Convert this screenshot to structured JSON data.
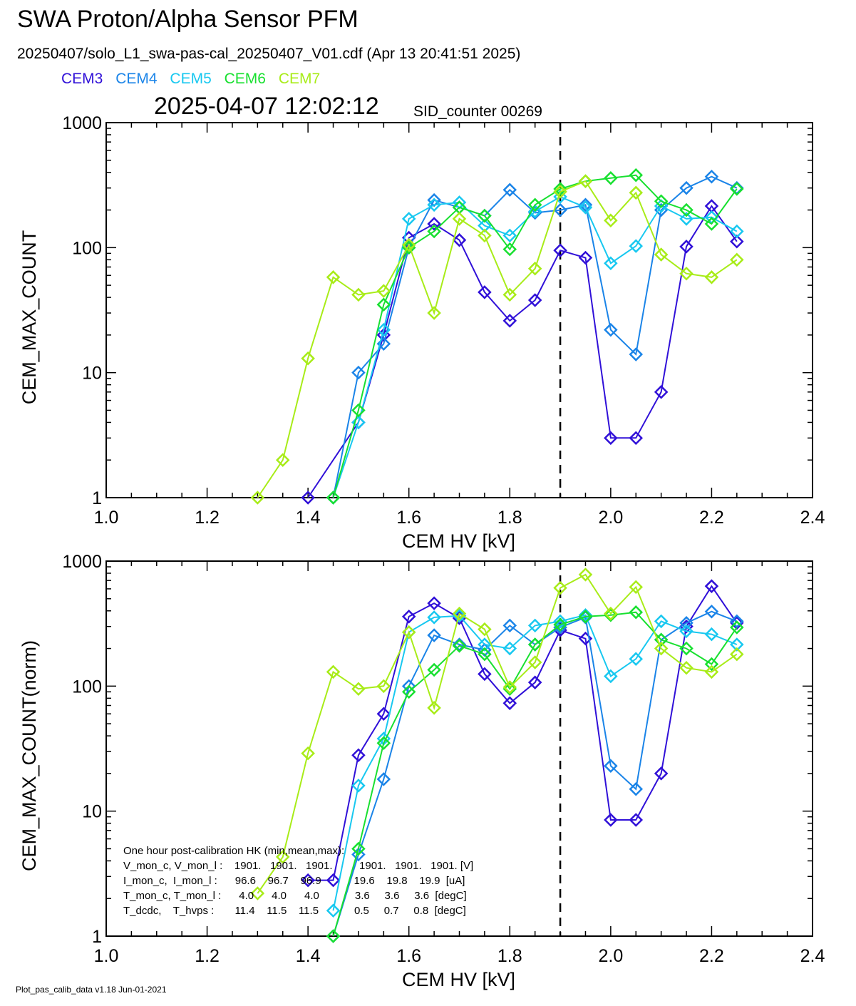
{
  "header": {
    "title": "SWA Proton/Alpha Sensor PFM",
    "file_line": "20250407/solo_L1_swa-pas-cal_20250407_V01.cdf  (Apr 13 20:41:51 2025)",
    "timestamp": "2025-04-07 12:02:12",
    "sid_counter": "SID_counter 00269"
  },
  "legend": [
    {
      "name": "CEM3",
      "color": "#3010d8"
    },
    {
      "name": "CEM4",
      "color": "#1a84e8"
    },
    {
      "name": "CEM5",
      "color": "#18c8f0"
    },
    {
      "name": "CEM6",
      "color": "#18e030"
    },
    {
      "name": "CEM7",
      "color": "#a8ec18"
    }
  ],
  "footer": "Plot_pas_calib_data v1.18 Jun-01-2021",
  "hk_text": {
    "heading": "One hour post-calibration HK (min,mean,max):",
    "lines": [
      "V_mon_c, V_mon_l :    1901.   1901.   1901.         1901.   1901.   1901. [V]",
      "I_mon_c,  I_mon_l :      96.6    96.7    96.9           19.6    19.8    19.9  [uA]",
      "T_mon_c, T_mon_l :      4.0      4.0      4.0            3.6     3.6     3.6  [degC]",
      "T_dcdc,    T_hvps :       11.4    11.5    11.5            0.5     0.7     0.8  [degC]"
    ]
  },
  "chart_data": [
    {
      "type": "line",
      "ylabel": "CEM_MAX_COUNT",
      "xlabel": "CEM HV [kV]",
      "xlim": [
        1.0,
        2.4
      ],
      "ylim": [
        1,
        1000
      ],
      "yscale": "log",
      "xticks": [
        "1.0",
        "1.2",
        "1.4",
        "1.6",
        "1.8",
        "2.0",
        "2.2",
        "2.4"
      ],
      "yticks": [
        "1",
        "10",
        "100",
        "1000"
      ],
      "vline": 1.9,
      "marker": "diamond",
      "x": [
        1.0,
        1.05,
        1.1,
        1.15,
        1.2,
        1.25,
        1.3,
        1.35,
        1.4,
        1.45,
        1.5,
        1.55,
        1.6,
        1.65,
        1.7,
        1.75,
        1.8,
        1.85,
        1.9,
        1.95,
        2.0,
        2.05,
        2.1,
        2.15,
        2.2,
        2.25
      ],
      "series": [
        {
          "name": "CEM3",
          "values": [
            0,
            0,
            0,
            0,
            0,
            0,
            0,
            0,
            1,
            0,
            4,
            20,
            120,
            155,
            115,
            44,
            26,
            38,
            95,
            83,
            3,
            3,
            7,
            102,
            215,
            112
          ]
        },
        {
          "name": "CEM4",
          "values": [
            0,
            0,
            0,
            0,
            0,
            0,
            0,
            0,
            0,
            1,
            10,
            17,
            100,
            240,
            210,
            180,
            290,
            190,
            200,
            220,
            22,
            14,
            200,
            300,
            370,
            300
          ]
        },
        {
          "name": "CEM5",
          "values": [
            0,
            0,
            0,
            0,
            0,
            0,
            0,
            0,
            0,
            1,
            4,
            22,
            170,
            220,
            230,
            150,
            125,
            195,
            255,
            210,
            75,
            103,
            215,
            170,
            175,
            135
          ]
        },
        {
          "name": "CEM6",
          "values": [
            0,
            0,
            0,
            0,
            0,
            0,
            0,
            0,
            0,
            1,
            5,
            35,
            100,
            135,
            210,
            180,
            97,
            220,
            295,
            340,
            360,
            380,
            235,
            200,
            155,
            295
          ]
        },
        {
          "name": "CEM7",
          "values": [
            0,
            0,
            0,
            0,
            0,
            0,
            1,
            2,
            13,
            58,
            42,
            45,
            105,
            30,
            170,
            125,
            42,
            68,
            280,
            340,
            165,
            275,
            88,
            62,
            58,
            80
          ]
        }
      ]
    },
    {
      "type": "line",
      "ylabel": "CEM_MAX_COUNT(norm)",
      "xlabel": "CEM HV [kV]",
      "xlim": [
        1.0,
        2.4
      ],
      "ylim": [
        1,
        1000
      ],
      "yscale": "log",
      "xticks": [
        "1.0",
        "1.2",
        "1.4",
        "1.6",
        "1.8",
        "2.0",
        "2.2",
        "2.4"
      ],
      "yticks": [
        "1",
        "10",
        "100",
        "1000"
      ],
      "vline": 1.9,
      "marker": "diamond",
      "x": [
        1.0,
        1.05,
        1.1,
        1.15,
        1.2,
        1.25,
        1.3,
        1.35,
        1.4,
        1.45,
        1.5,
        1.55,
        1.6,
        1.65,
        1.7,
        1.75,
        1.8,
        1.85,
        1.9,
        1.95,
        2.0,
        2.05,
        2.1,
        2.15,
        2.2,
        2.25
      ],
      "series": [
        {
          "name": "CEM3",
          "values": [
            0,
            0,
            0,
            0,
            0,
            0,
            0,
            0,
            2.8,
            2.8,
            28,
            60,
            360,
            460,
            350,
            125,
            73,
            107,
            280,
            240,
            8.5,
            8.5,
            20,
            300,
            630,
            320
          ]
        },
        {
          "name": "CEM4",
          "values": [
            0,
            0,
            0,
            0,
            0,
            0,
            0,
            0,
            0,
            1,
            4.5,
            18,
            100,
            255,
            215,
            195,
            305,
            215,
            295,
            355,
            23,
            15,
            235,
            320,
            395,
            330
          ]
        },
        {
          "name": "CEM5",
          "values": [
            0,
            0,
            0,
            0,
            0,
            0,
            0,
            0,
            0,
            1.6,
            16,
            38,
            270,
            355,
            365,
            215,
            200,
            305,
            330,
            370,
            120,
            165,
            330,
            275,
            260,
            215
          ]
        },
        {
          "name": "CEM6",
          "values": [
            0,
            0,
            0,
            0,
            0,
            0,
            0,
            0,
            0,
            1,
            5,
            35,
            90,
            135,
            210,
            180,
            95,
            215,
            310,
            360,
            370,
            390,
            235,
            200,
            150,
            295
          ]
        },
        {
          "name": "CEM7",
          "values": [
            0,
            0,
            0,
            0,
            0,
            0,
            2.2,
            4.3,
            29,
            130,
            95,
            100,
            270,
            67,
            380,
            285,
            98,
            155,
            610,
            780,
            380,
            620,
            200,
            140,
            130,
            180
          ]
        }
      ]
    }
  ]
}
